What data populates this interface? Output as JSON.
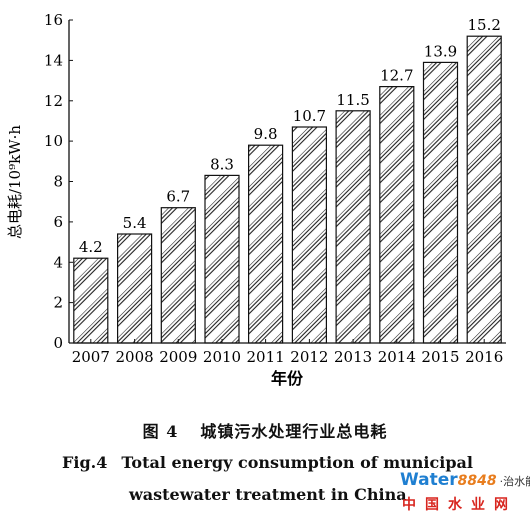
{
  "chart_data": {
    "type": "bar",
    "categories": [
      "2007",
      "2008",
      "2009",
      "2010",
      "2011",
      "2012",
      "2013",
      "2014",
      "2015",
      "2016"
    ],
    "values": [
      4.2,
      5.4,
      6.7,
      8.3,
      9.8,
      10.7,
      11.5,
      12.7,
      13.9,
      15.2
    ],
    "value_labels": [
      "4.2",
      "5.4",
      "6.7",
      "8.3",
      "9.8",
      "10.7",
      "11.5",
      "12.7",
      "13.9",
      "15.2"
    ],
    "ylim": [
      0,
      16
    ],
    "yticks": [
      0,
      2,
      4,
      6,
      8,
      10,
      12,
      14,
      16
    ],
    "ytick_labels": [
      "0",
      "2",
      "4",
      "6",
      "8",
      "10",
      "12",
      "14",
      "16"
    ],
    "ylabel": "总电耗/10⁹kW·h",
    "xlabel": "年份",
    "grid": false,
    "bar_fill": "diagonal-hatch"
  },
  "caption": {
    "cn_fig": "图 4",
    "cn_title": "城镇污水处理行业总电耗",
    "en_fig": "Fig.4",
    "en_title_line1": "Total energy consumption of municipal",
    "en_title_line2": "wastewater treatment in China"
  },
  "watermark": {
    "brand": "Water",
    "number": "8848",
    "tag": "·治水能",
    "subtitle": "中国水业网"
  },
  "colors": {
    "axis": "#111111",
    "hatch": "#222222",
    "bar_bg": "#ffffff",
    "watermark_blue": "#1f7fd1",
    "watermark_orange": "#e87d1e",
    "watermark_red": "#d8261f"
  }
}
